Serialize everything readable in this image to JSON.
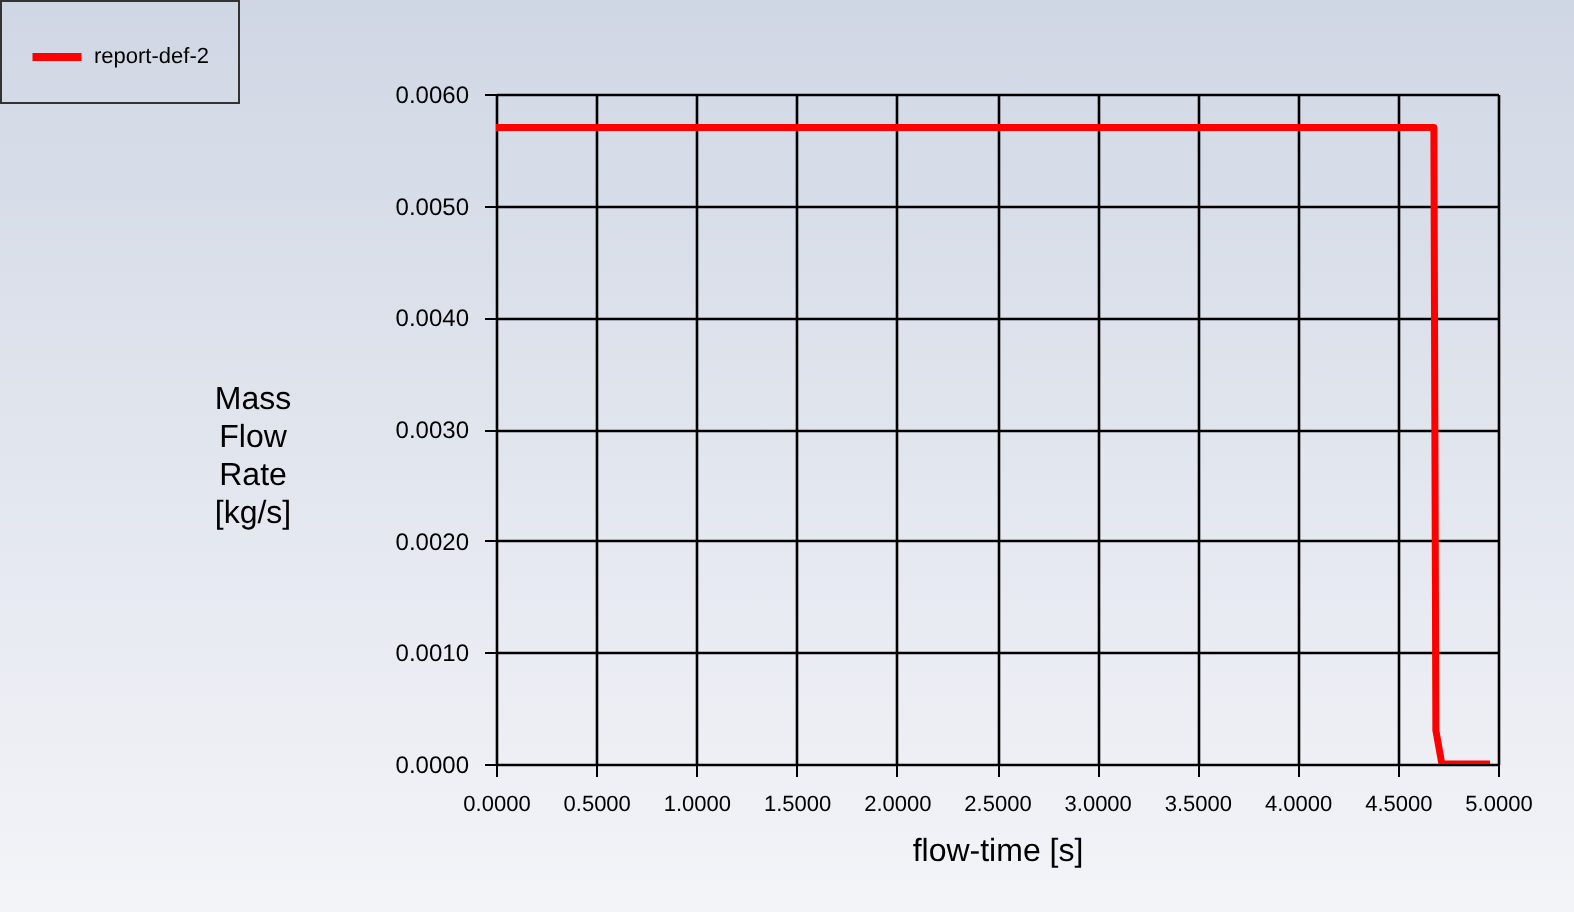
{
  "chart_data": {
    "type": "line",
    "xlabel": "flow-time [s]",
    "ylabel": "Mass Flow Rate [kg/s]",
    "xlim": [
      0,
      5
    ],
    "ylim": [
      0,
      0.006
    ],
    "xticks": [
      {
        "value": 0,
        "label": "0.0000"
      },
      {
        "value": 0.5,
        "label": "0.5000"
      },
      {
        "value": 1,
        "label": "1.0000"
      },
      {
        "value": 1.5,
        "label": "1.5000"
      },
      {
        "value": 2,
        "label": "2.0000"
      },
      {
        "value": 2.5,
        "label": "2.5000"
      },
      {
        "value": 3,
        "label": "3.0000"
      },
      {
        "value": 3.5,
        "label": "3.5000"
      },
      {
        "value": 4,
        "label": "4.0000"
      },
      {
        "value": 4.5,
        "label": "4.5000"
      },
      {
        "value": 5,
        "label": "5.0000"
      }
    ],
    "yticks": [
      {
        "value": 0,
        "label": "0.0000"
      },
      {
        "value": 0.001,
        "label": "0.0010"
      },
      {
        "value": 0.002,
        "label": "0.0020"
      },
      {
        "value": 0.003,
        "label": "0.0030"
      },
      {
        "value": 0.004,
        "label": "0.0040"
      },
      {
        "value": 0.005,
        "label": "0.0050"
      },
      {
        "value": 0.006,
        "label": "0.0060"
      }
    ],
    "grid": true,
    "legend": "top left",
    "marker": "none",
    "line_style": "solid",
    "series": [
      {
        "name": "report-def-2",
        "color": "#ff0000",
        "x": [
          0,
          4.68,
          4.69,
          4.72,
          4.96
        ],
        "values": [
          0.0057,
          0.0057,
          0.0003,
          0,
          0
        ]
      }
    ]
  }
}
